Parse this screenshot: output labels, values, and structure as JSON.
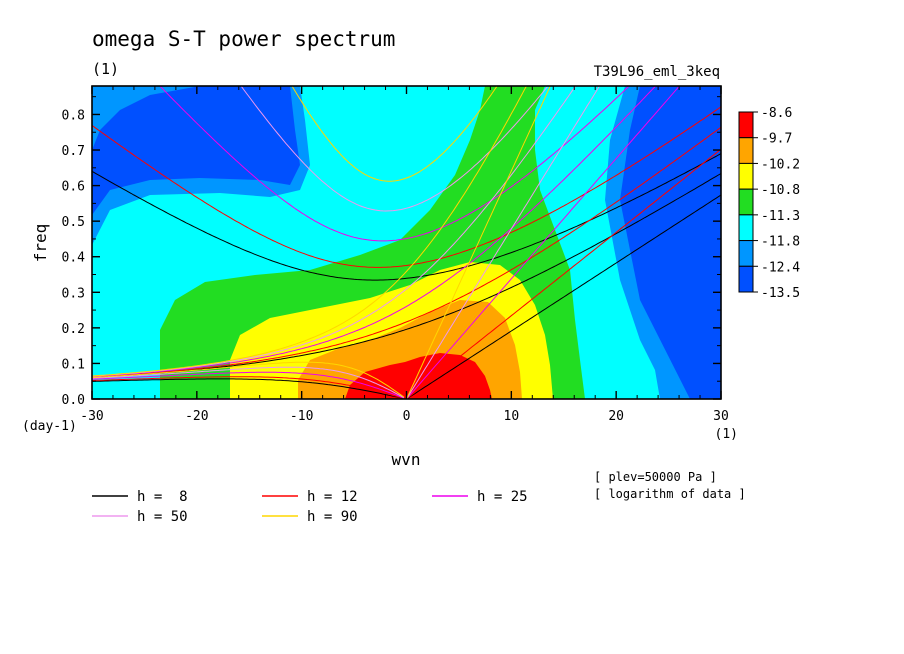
{
  "chart_data": {
    "type": "heatmap",
    "title": "omega S-T power spectrum",
    "units_label": "(1)",
    "run_label": "T39L96_eml_3keq",
    "xlabel": "wvn",
    "ylabel": "freq",
    "x_unit": "(1)",
    "y_unit": "(day-1)",
    "xlim": [
      -30,
      30
    ],
    "ylim": [
      0,
      0.88
    ],
    "x_ticks": [
      -30,
      -20,
      -10,
      0,
      10,
      20,
      30
    ],
    "y_ticks": [
      0.0,
      0.1,
      0.2,
      0.3,
      0.4,
      0.5,
      0.6,
      0.7,
      0.8
    ],
    "x_tick_labels": [
      "-30",
      "-20",
      "-10",
      "0",
      "10",
      "20",
      "30"
    ],
    "y_tick_labels": [
      "0.0",
      "0.1",
      "0.2",
      "0.3",
      "0.4",
      "0.5",
      "0.6",
      "0.7",
      "0.8"
    ],
    "colorbar": {
      "labels": [
        "-8.6",
        "-9.7",
        "-10.2",
        "-10.8",
        "-11.3",
        "-11.8",
        "-12.4",
        "-13.5"
      ],
      "colors": [
        "#ff0000",
        "#ffa500",
        "#ffff00",
        "#22dd22",
        "#00ffff",
        "#0096ff",
        "#0050ff"
      ]
    },
    "bg_color": "#0050ff",
    "equivalent_depth_lines": [
      {
        "label": "h =  8",
        "h": 8,
        "color": "#000000"
      },
      {
        "label": "h = 12",
        "h": 12,
        "color": "#ff0000"
      },
      {
        "label": "h = 25",
        "h": 25,
        "color": "#ee00ee"
      },
      {
        "label": "h = 50",
        "h": 50,
        "color": "#ee99ee"
      },
      {
        "label": "h = 90",
        "h": 90,
        "color": "#ffd700"
      }
    ],
    "notes": [
      "[ plev=50000 Pa ]",
      "[ logarithm of data ]"
    ]
  }
}
